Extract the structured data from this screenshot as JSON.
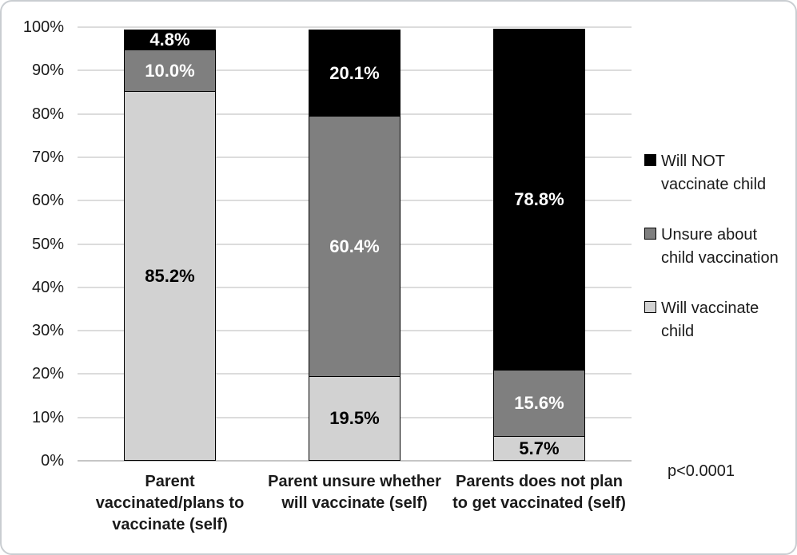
{
  "chart_data": {
    "type": "bar",
    "stacked": true,
    "title": "",
    "xlabel": "",
    "ylabel": "",
    "ylim": [
      0,
      100
    ],
    "grid": true,
    "legend_position": "right",
    "y_ticks": [
      "0%",
      "10%",
      "20%",
      "30%",
      "40%",
      "50%",
      "60%",
      "70%",
      "80%",
      "90%",
      "100%"
    ],
    "categories": [
      "Parent vaccinated/plans to vaccinate (self)",
      "Parent unsure whether will vaccinate (self)",
      "Parents does not plan to get vaccinated (self)"
    ],
    "category_lines": [
      [
        "Parent",
        "vaccinated/plans to",
        "vaccinate (self)"
      ],
      [
        "Parent unsure whether",
        "will vaccinate (self)"
      ],
      [
        "Parents does not plan",
        "to get vaccinated (self)"
      ]
    ],
    "series": [
      {
        "name": "Will vaccinate child",
        "values": [
          85.2,
          19.5,
          5.7
        ],
        "color": "#d2d2d2",
        "label_color": "#000000"
      },
      {
        "name": "Unsure about child vaccination",
        "values": [
          10.0,
          60.4,
          15.6
        ],
        "color": "#7f7f7f",
        "label_color": "#ffffff"
      },
      {
        "name": "Will NOT vaccinate child",
        "values": [
          4.8,
          20.1,
          78.8
        ],
        "color": "#000000",
        "label_color": "#ffffff"
      }
    ],
    "legend": [
      {
        "name": "Will NOT vaccinate child",
        "lines": [
          "Will NOT",
          "vaccinate child"
        ],
        "color": "#000000"
      },
      {
        "name": "Unsure about child vaccination",
        "lines": [
          "Unsure about",
          "child vaccination"
        ],
        "color": "#7f7f7f"
      },
      {
        "name": "Will vaccinate child",
        "lines": [
          "Will vaccinate",
          "child"
        ],
        "color": "#d2d2d2"
      }
    ],
    "annotation": "p<0.0001"
  },
  "colors": {
    "gridline": "#dcdcdc",
    "axis_line": "#c6c6c6",
    "frame_border": "#c9cdd1",
    "background": "#ffffff",
    "text": "#1a1a1a"
  }
}
